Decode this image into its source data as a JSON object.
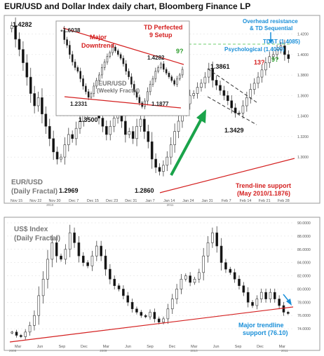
{
  "title": "EUR/USD  and Dollar Index daily chart, Bloomberg Finance LP",
  "colors": {
    "bull": "#ffffff",
    "bear": "#111111",
    "trend": "#d42020",
    "arrow": "#1aa34a",
    "note": "#1a8fd8",
    "green_dash": "#6fce6f"
  },
  "chart_data": [
    {
      "type": "candlestick",
      "panel": "top",
      "series_name": "EUR/USD",
      "subtitle": "(Daily Fractal)",
      "ylim": [
        1.27,
        1.43
      ],
      "y_ticks": [
        "1.4200",
        "1.4000",
        "1.3800",
        "1.3600",
        "1.3400",
        "1.3200",
        "1.3000"
      ],
      "x_tick_labels": [
        "Nov 15",
        "Nov 22",
        "Nov 30",
        "Dec 7",
        "Dec 15",
        "Dec 23",
        "Dec 31",
        "Jan 7",
        "Jan 14",
        "Jan 24",
        "Jan 31",
        "Feb 7",
        "Feb 14",
        "Feb 21",
        "Feb 28"
      ],
      "x_year_labels": [
        "2010",
        "2011"
      ],
      "closes": [
        1.4282,
        1.415,
        1.405,
        1.392,
        1.378,
        1.362,
        1.35,
        1.358,
        1.342,
        1.33,
        1.318,
        1.305,
        1.298,
        1.3,
        1.312,
        1.322,
        1.318,
        1.328,
        1.335,
        1.342,
        1.35,
        1.355,
        1.347,
        1.338,
        1.33,
        1.322,
        1.33,
        1.338,
        1.345,
        1.335,
        1.322,
        1.325,
        1.318,
        1.33,
        1.337,
        1.325,
        1.315,
        1.298,
        1.29,
        1.286,
        1.292,
        1.3,
        1.312,
        1.325,
        1.335,
        1.345,
        1.352,
        1.36,
        1.362,
        1.368,
        1.372,
        1.378,
        1.3861,
        1.375,
        1.37,
        1.365,
        1.36,
        1.355,
        1.348,
        1.343,
        1.3429,
        1.35,
        1.358,
        1.366,
        1.372,
        1.378,
        1.385,
        1.392,
        1.398,
        1.4,
        1.405,
        1.4085,
        1.4,
        1.396
      ],
      "annotations": [
        "1.4282",
        "1.3500",
        "1.2969",
        "1.2860",
        "1.3861",
        "1.3429",
        "TD Perfected",
        "9 Setup",
        "Overhead resistance",
        "& TD Sequential",
        "TDST (1.4085)",
        "Psychological (1.4000)",
        "13?",
        "9?",
        "9?",
        "Trend-line support",
        "(May 2010/1.1876)"
      ],
      "inset": {
        "series_name": "EUR/USD",
        "subtitle": "(Weekly Fractal)",
        "annotations": [
          "1.6038",
          "Major",
          "Downtrend",
          "1.4282",
          "1.2331",
          "1.1877"
        ]
      }
    },
    {
      "type": "candlestick",
      "panel": "bottom",
      "series_name": "US$ Index",
      "subtitle": "(Daily Fractal)",
      "ylim": [
        72,
        90
      ],
      "y_ticks": [
        "90.0000",
        "88.0000",
        "86.0000",
        "84.0000",
        "82.0000",
        "80.0000",
        "78.0000",
        "76.0000",
        "74.0000"
      ],
      "x_tick_labels": [
        "Mar",
        "Jun",
        "Sep",
        "Dec",
        "Mar",
        "Jun",
        "Sep",
        "Dec",
        "Mar",
        "Jun",
        "Sep",
        "Dec",
        "Mar"
      ],
      "x_year_labels": [
        "2008",
        "2009",
        "2010",
        "2011"
      ],
      "closes": [
        73.5,
        73,
        72.8,
        73.5,
        74.5,
        76,
        79,
        81.5,
        84.5,
        87,
        85,
        84.5,
        86,
        88.5,
        87,
        85,
        84,
        83.5,
        85,
        86.5,
        85,
        83,
        81.5,
        80.5,
        80,
        79,
        78,
        77,
        76.5,
        76,
        75.8,
        76.5,
        75.5,
        75,
        75.5,
        77,
        78.5,
        80,
        81.5,
        82,
        81,
        81.5,
        82.5,
        85,
        87,
        88.5,
        86.5,
        84,
        83,
        82.5,
        81.5,
        80.5,
        79.5,
        78,
        77.5,
        78.5,
        79.5,
        78.5,
        79.5,
        78.5,
        77.5,
        76.5,
        76.3
      ],
      "annotations": [
        "Major trendline",
        "support (76.10)"
      ]
    }
  ]
}
